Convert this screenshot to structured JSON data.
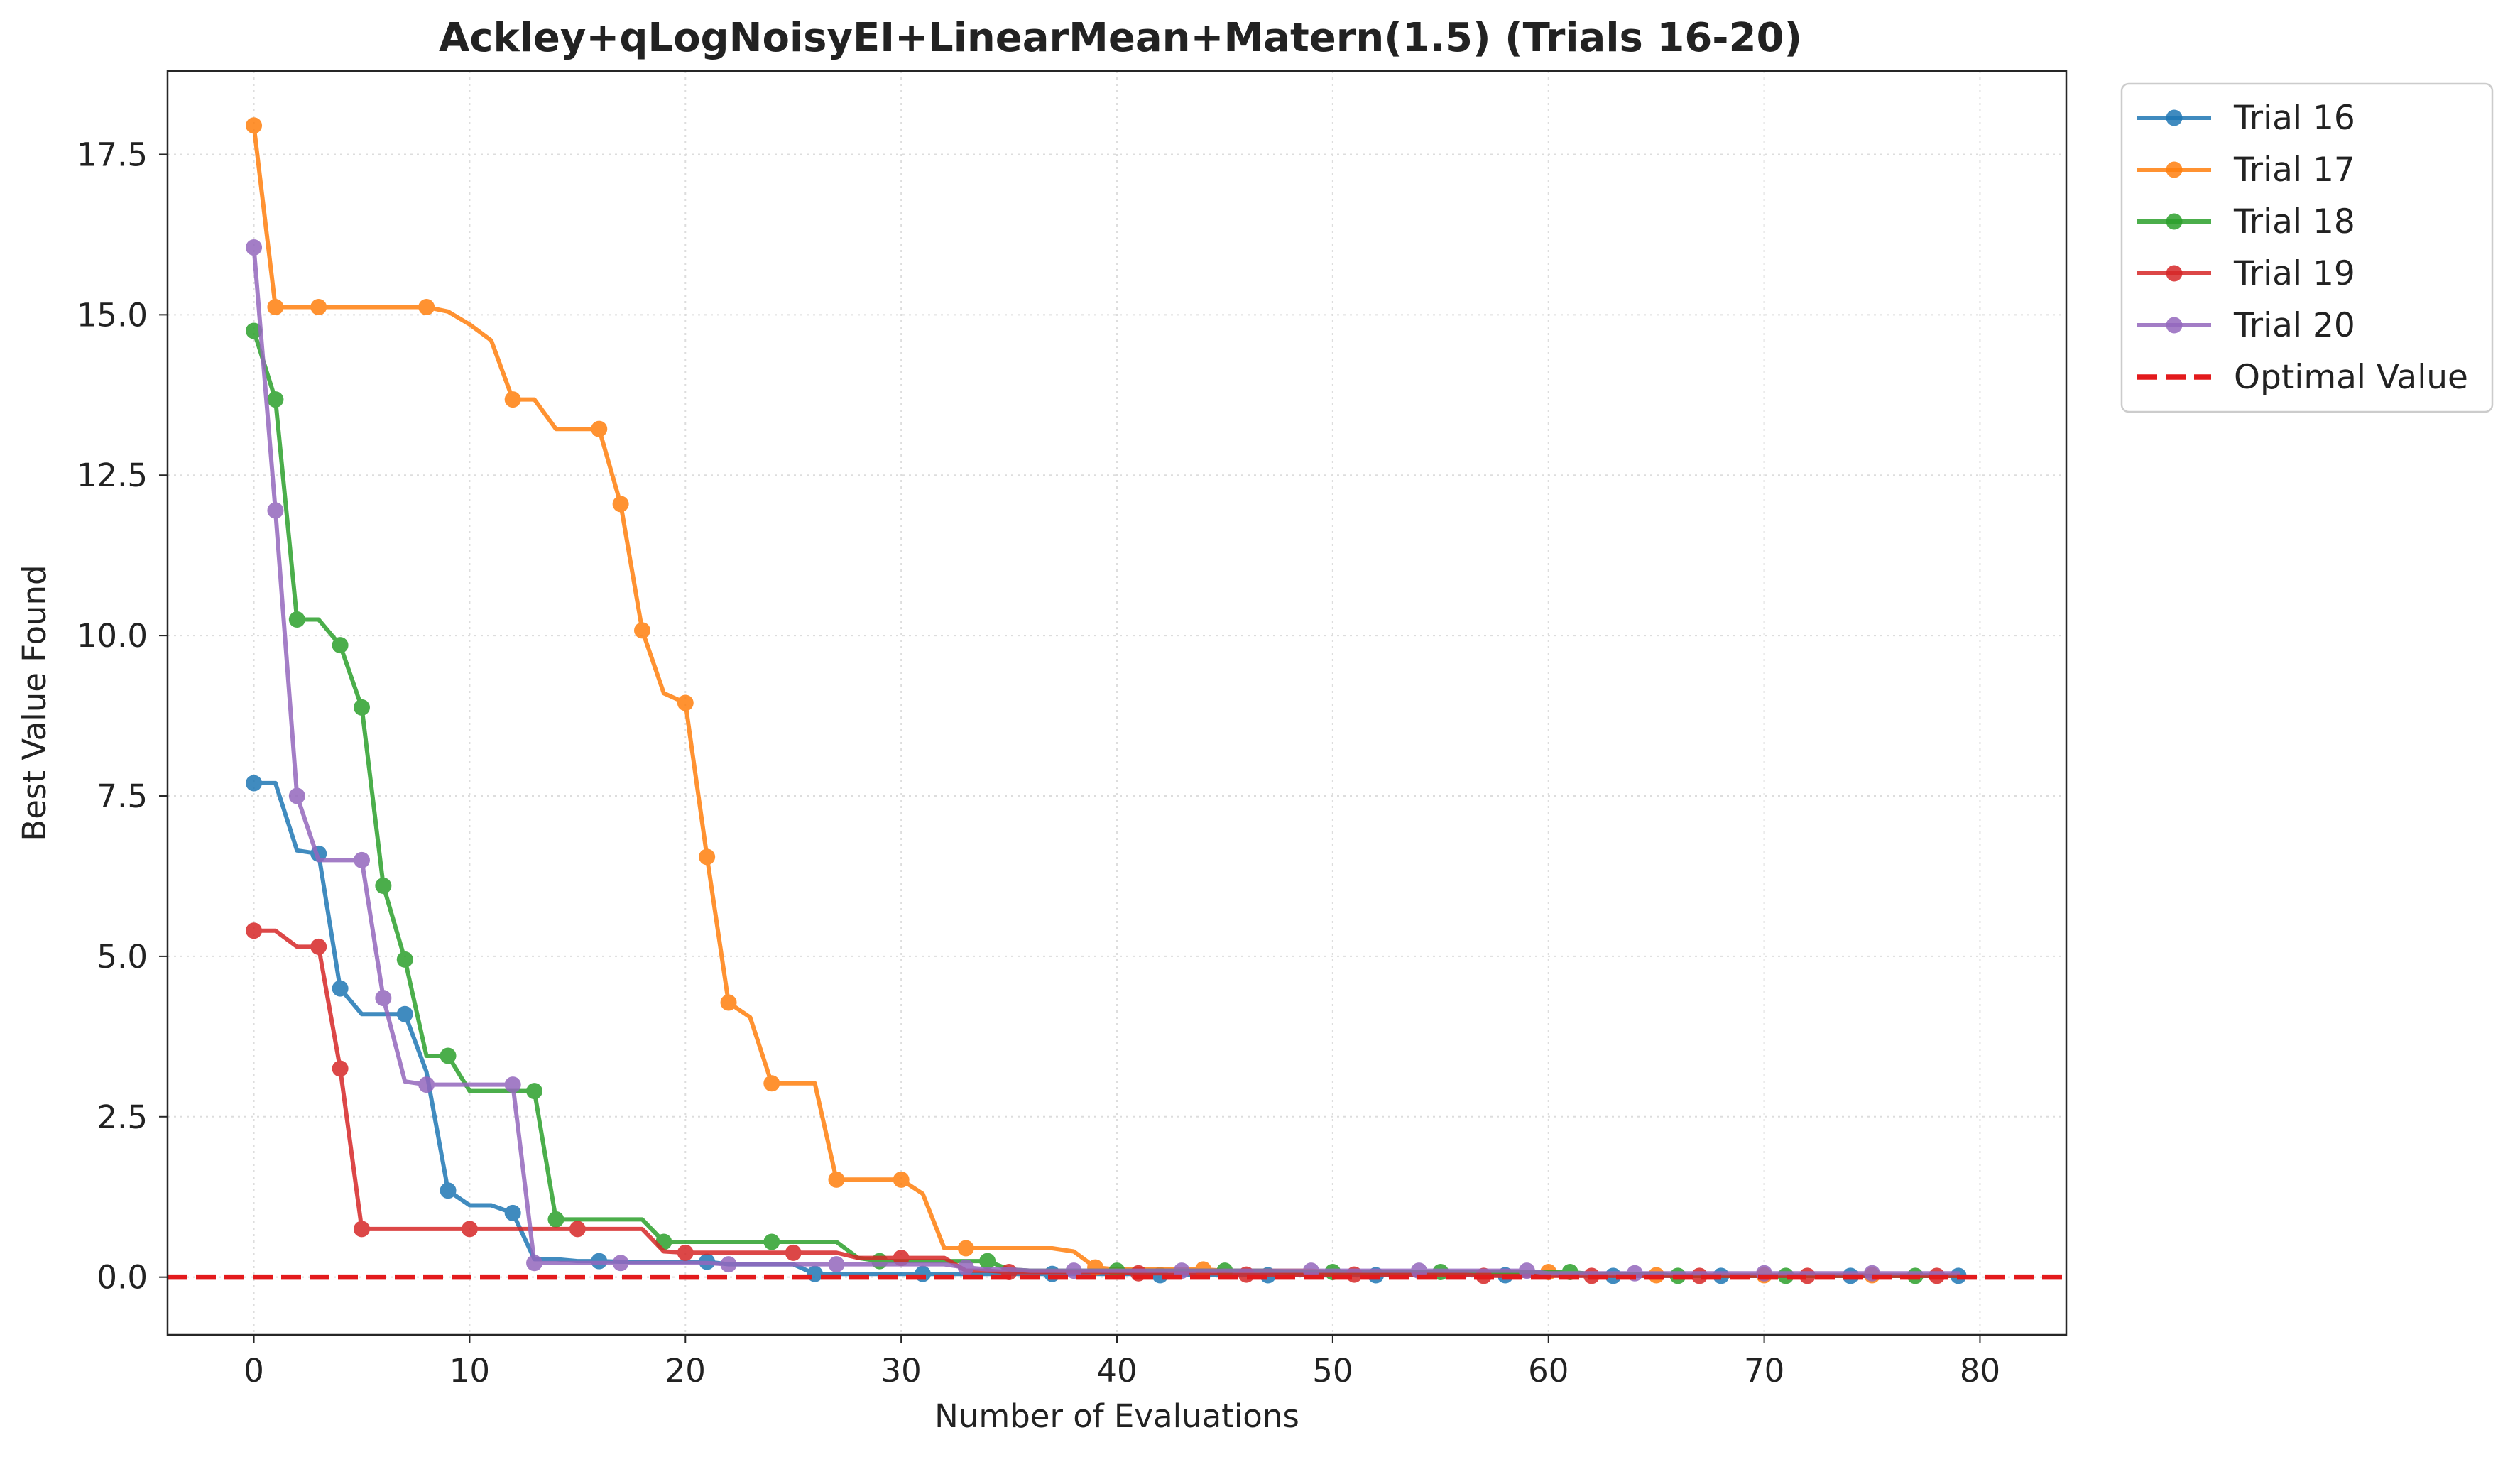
{
  "chart_data": {
    "type": "line",
    "title": "Ackley+qLogNoisyEI+LinearMean+Matern(1.5) (Trials 16-20)",
    "xlabel": "Number of Evaluations",
    "ylabel": "Best Value Found",
    "xlim": [
      -4,
      84
    ],
    "ylim": [
      -0.9,
      18.8
    ],
    "xticks": [
      0,
      10,
      20,
      30,
      40,
      50,
      60,
      70,
      80
    ],
    "xtick_labels": [
      "0",
      "10",
      "20",
      "30",
      "40",
      "50",
      "60",
      "70",
      "80"
    ],
    "yticks": [
      0,
      2.5,
      5,
      7.5,
      10,
      12.5,
      15,
      17.5
    ],
    "ytick_labels": [
      "0.0",
      "2.5",
      "5.0",
      "7.5",
      "10.0",
      "12.5",
      "15.0",
      "17.5"
    ],
    "grid": true,
    "legend_position": "outside-top-right",
    "series": [
      {
        "name": "Trial 16",
        "color": "#1f77b4",
        "x": [
          0,
          1,
          2,
          3,
          4,
          5,
          6,
          7,
          8,
          9,
          10,
          11,
          12,
          13,
          14,
          15,
          16,
          17,
          18,
          19,
          20,
          21,
          22,
          23,
          24,
          25,
          26,
          27,
          28,
          29,
          30,
          31,
          32,
          33,
          34,
          35,
          36,
          37,
          38,
          39,
          40,
          41,
          42,
          43,
          44,
          45,
          46,
          47,
          48,
          49,
          50,
          51,
          52,
          53,
          54,
          55,
          56,
          57,
          58,
          59,
          60,
          61,
          62,
          63,
          64,
          65,
          66,
          67,
          68,
          69,
          70,
          71,
          72,
          73,
          74,
          75,
          76,
          77,
          78,
          79
        ],
        "values": [
          7.7,
          7.7,
          6.65,
          6.6,
          4.5,
          4.1,
          4.1,
          4.1,
          3.2,
          1.35,
          1.12,
          1.12,
          1.0,
          0.28,
          0.28,
          0.25,
          0.25,
          0.24,
          0.24,
          0.24,
          0.24,
          0.24,
          0.2,
          0.2,
          0.2,
          0.2,
          0.05,
          0.05,
          0.05,
          0.05,
          0.05,
          0.05,
          0.05,
          0.05,
          0.05,
          0.05,
          0.05,
          0.05,
          0.05,
          0.05,
          0.05,
          0.05,
          0.03,
          0.03,
          0.03,
          0.03,
          0.03,
          0.03,
          0.03,
          0.03,
          0.03,
          0.03,
          0.03,
          0.03,
          0.03,
          0.03,
          0.03,
          0.03,
          0.03,
          0.03,
          0.03,
          0.03,
          0.02,
          0.02,
          0.02,
          0.02,
          0.02,
          0.02,
          0.02,
          0.02,
          0.02,
          0.02,
          0.02,
          0.02,
          0.02,
          0.02,
          0.02,
          0.02,
          0.02,
          0.02
        ],
        "markers": [
          0,
          3,
          4,
          7,
          9,
          12,
          16,
          21,
          26,
          31,
          37,
          42,
          47,
          52,
          58,
          63,
          68,
          74,
          79
        ]
      },
      {
        "name": "Trial 17",
        "color": "#ff7f0e",
        "x": [
          0,
          1,
          2,
          3,
          4,
          5,
          6,
          7,
          8,
          9,
          10,
          11,
          12,
          13,
          14,
          15,
          16,
          17,
          18,
          19,
          20,
          21,
          22,
          23,
          24,
          25,
          26,
          27,
          28,
          29,
          30,
          31,
          32,
          33,
          34,
          35,
          36,
          37,
          38,
          39,
          40,
          41,
          42,
          43,
          44,
          45,
          46,
          47,
          48,
          49,
          50,
          51,
          52,
          53,
          54,
          55,
          56,
          57,
          58,
          59,
          60,
          61,
          62,
          63,
          64,
          65,
          66,
          67,
          68,
          69,
          70,
          71,
          72,
          73,
          74,
          75,
          76,
          77,
          78,
          79
        ],
        "values": [
          17.95,
          15.12,
          15.12,
          15.12,
          15.12,
          15.12,
          15.12,
          15.12,
          15.12,
          15.05,
          14.85,
          14.6,
          13.68,
          13.68,
          13.22,
          13.22,
          13.22,
          12.05,
          10.08,
          9.1,
          8.95,
          6.55,
          4.28,
          4.05,
          3.02,
          3.02,
          3.02,
          1.52,
          1.52,
          1.52,
          1.52,
          1.3,
          0.45,
          0.45,
          0.45,
          0.45,
          0.45,
          0.45,
          0.4,
          0.15,
          0.12,
          0.12,
          0.12,
          0.12,
          0.12,
          0.1,
          0.1,
          0.1,
          0.1,
          0.1,
          0.08,
          0.08,
          0.08,
          0.08,
          0.08,
          0.08,
          0.08,
          0.08,
          0.08,
          0.08,
          0.08,
          0.05,
          0.05,
          0.05,
          0.05,
          0.03,
          0.03,
          0.03,
          0.03,
          0.03,
          0.03,
          0.03,
          0.03,
          0.03,
          0.03,
          0.03,
          0.03,
          0.03,
          0.03,
          0.03
        ],
        "markers": [
          0,
          1,
          3,
          8,
          12,
          16,
          17,
          18,
          20,
          21,
          22,
          24,
          27,
          30,
          33,
          39,
          44,
          60,
          65,
          70,
          75
        ]
      },
      {
        "name": "Trial 18",
        "color": "#2ca02c",
        "x": [
          0,
          1,
          2,
          3,
          4,
          5,
          6,
          7,
          8,
          9,
          10,
          11,
          12,
          13,
          14,
          15,
          16,
          17,
          18,
          19,
          20,
          21,
          22,
          23,
          24,
          25,
          26,
          27,
          28,
          29,
          30,
          31,
          32,
          33,
          34,
          35,
          36,
          37,
          38,
          39,
          40,
          41,
          42,
          43,
          44,
          45,
          46,
          47,
          48,
          49,
          50,
          51,
          52,
          53,
          54,
          55,
          56,
          57,
          58,
          59,
          60,
          61,
          62,
          63,
          64,
          65,
          66,
          67,
          68,
          69,
          70,
          71,
          72,
          73,
          74,
          75,
          76,
          77,
          78,
          79
        ],
        "values": [
          14.75,
          13.68,
          10.25,
          10.25,
          9.85,
          8.88,
          6.1,
          4.95,
          3.45,
          3.45,
          2.9,
          2.9,
          2.9,
          2.9,
          0.9,
          0.9,
          0.9,
          0.9,
          0.9,
          0.55,
          0.55,
          0.55,
          0.55,
          0.55,
          0.55,
          0.55,
          0.55,
          0.55,
          0.3,
          0.25,
          0.25,
          0.25,
          0.25,
          0.25,
          0.25,
          0.12,
          0.1,
          0.1,
          0.1,
          0.1,
          0.1,
          0.1,
          0.1,
          0.1,
          0.1,
          0.1,
          0.1,
          0.1,
          0.08,
          0.08,
          0.08,
          0.08,
          0.08,
          0.08,
          0.08,
          0.08,
          0.08,
          0.08,
          0.08,
          0.08,
          0.08,
          0.08,
          0.05,
          0.05,
          0.05,
          0.05,
          0.02,
          0.02,
          0.02,
          0.02,
          0.02,
          0.02,
          0.02,
          0.02,
          0.02,
          0.02,
          0.02,
          0.02,
          0.02,
          0.02
        ],
        "markers": [
          0,
          1,
          2,
          4,
          5,
          6,
          7,
          9,
          13,
          14,
          19,
          24,
          29,
          34,
          40,
          45,
          50,
          55,
          61,
          66,
          71,
          77
        ]
      },
      {
        "name": "Trial 19",
        "color": "#d62728",
        "x": [
          0,
          1,
          2,
          3,
          4,
          5,
          6,
          7,
          8,
          9,
          10,
          11,
          12,
          13,
          14,
          15,
          16,
          17,
          18,
          19,
          20,
          21,
          22,
          23,
          24,
          25,
          26,
          27,
          28,
          29,
          30,
          31,
          32,
          33,
          34,
          35,
          36,
          37,
          38,
          39,
          40,
          41,
          42,
          43,
          44,
          45,
          46,
          47,
          48,
          49,
          50,
          51,
          52,
          53,
          54,
          55,
          56,
          57,
          58,
          59,
          60,
          61,
          62,
          63,
          64,
          65,
          66,
          67,
          68,
          69,
          70,
          71,
          72,
          73,
          74,
          75,
          76,
          77,
          78,
          79
        ],
        "values": [
          5.4,
          5.4,
          5.15,
          5.15,
          3.25,
          0.75,
          0.75,
          0.75,
          0.75,
          0.75,
          0.75,
          0.75,
          0.75,
          0.75,
          0.75,
          0.75,
          0.75,
          0.75,
          0.75,
          0.4,
          0.38,
          0.38,
          0.38,
          0.38,
          0.38,
          0.38,
          0.38,
          0.38,
          0.3,
          0.3,
          0.3,
          0.3,
          0.3,
          0.1,
          0.1,
          0.08,
          0.08,
          0.08,
          0.08,
          0.08,
          0.08,
          0.06,
          0.06,
          0.06,
          0.06,
          0.06,
          0.04,
          0.04,
          0.04,
          0.04,
          0.04,
          0.04,
          0.04,
          0.04,
          0.04,
          0.04,
          0.04,
          0.02,
          0.02,
          0.02,
          0.02,
          0.02,
          0.02,
          0.02,
          0.02,
          0.02,
          0.02,
          0.02,
          0.02,
          0.02,
          0.02,
          0.02,
          0.02,
          0.02,
          0.02,
          0.02,
          0.02,
          0.02,
          0.02,
          0.02
        ],
        "markers": [
          0,
          3,
          4,
          5,
          10,
          15,
          20,
          25,
          30,
          35,
          41,
          46,
          51,
          57,
          62,
          67,
          72,
          78
        ]
      },
      {
        "name": "Trial 20",
        "color": "#9467bd",
        "x": [
          0,
          1,
          2,
          3,
          4,
          5,
          6,
          7,
          8,
          9,
          10,
          11,
          12,
          13,
          14,
          15,
          16,
          17,
          18,
          19,
          20,
          21,
          22,
          23,
          24,
          25,
          26,
          27,
          28,
          29,
          30,
          31,
          32,
          33,
          34,
          35,
          36,
          37,
          38,
          39,
          40,
          41,
          42,
          43,
          44,
          45,
          46,
          47,
          48,
          49,
          50,
          51,
          52,
          53,
          54,
          55,
          56,
          57,
          58,
          59,
          60,
          61,
          62,
          63,
          64,
          65,
          66,
          67,
          68,
          69,
          70,
          71,
          72,
          73,
          74,
          75,
          76,
          77,
          78,
          79
        ],
        "values": [
          16.05,
          11.95,
          7.5,
          6.5,
          6.5,
          6.5,
          4.35,
          3.05,
          3.0,
          3.0,
          3.0,
          3.0,
          3.0,
          0.22,
          0.22,
          0.22,
          0.22,
          0.22,
          0.22,
          0.22,
          0.22,
          0.22,
          0.2,
          0.2,
          0.2,
          0.2,
          0.2,
          0.2,
          0.2,
          0.2,
          0.2,
          0.2,
          0.2,
          0.15,
          0.12,
          0.12,
          0.1,
          0.1,
          0.1,
          0.1,
          0.1,
          0.1,
          0.1,
          0.1,
          0.1,
          0.1,
          0.1,
          0.1,
          0.1,
          0.1,
          0.1,
          0.1,
          0.1,
          0.1,
          0.1,
          0.1,
          0.1,
          0.1,
          0.1,
          0.1,
          0.06,
          0.06,
          0.06,
          0.06,
          0.06,
          0.06,
          0.06,
          0.06,
          0.06,
          0.06,
          0.06,
          0.06,
          0.06,
          0.06,
          0.06,
          0.06,
          0.06,
          0.06,
          0.06,
          0.06
        ],
        "markers": [
          0,
          1,
          2,
          5,
          6,
          8,
          12,
          13,
          17,
          22,
          27,
          33,
          38,
          43,
          49,
          54,
          59,
          64,
          70,
          75
        ]
      }
    ],
    "reference_line": {
      "name": "Optimal Value",
      "y": 0.0,
      "color": "#e31a1c",
      "style": "dashed"
    }
  }
}
